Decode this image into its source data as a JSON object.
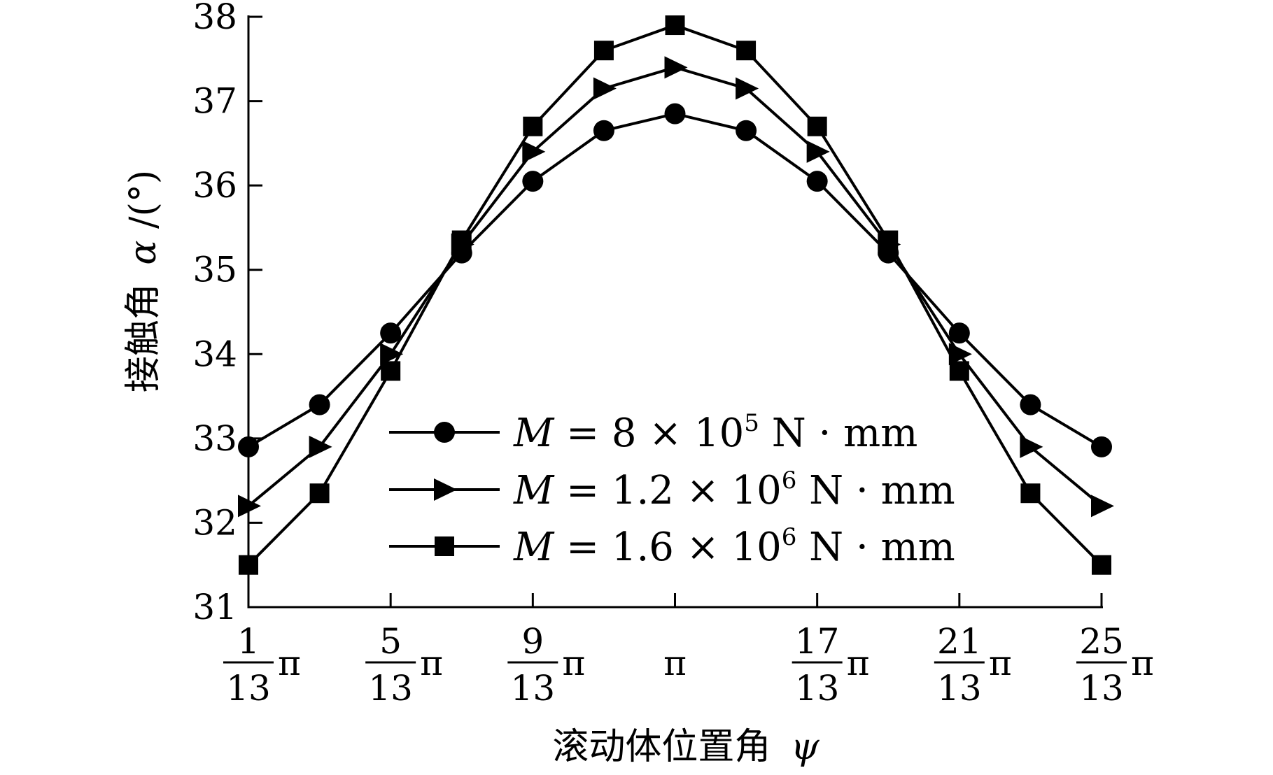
{
  "chart_data": {
    "type": "line",
    "title": "",
    "xlabel": "滚动体位置角",
    "xlabel_symbol": "ψ",
    "ylabel": "接触角",
    "ylabel_symbol": "α",
    "ylabel_unit": "/(°)",
    "ylim": [
      31,
      38
    ],
    "yticks": [
      31,
      32,
      33,
      34,
      35,
      36,
      37,
      38
    ],
    "x": [
      1,
      3,
      5,
      7,
      9,
      11,
      13,
      15,
      17,
      19,
      21,
      23,
      25
    ],
    "x_unit": "π/13",
    "xlim": [
      1,
      25
    ],
    "xticks": [
      {
        "value": 1,
        "num": "1",
        "den": "13",
        "sym": "π"
      },
      {
        "value": 5,
        "num": "5",
        "den": "13",
        "sym": "π"
      },
      {
        "value": 9,
        "num": "9",
        "den": "13",
        "sym": "π"
      },
      {
        "value": 13,
        "num": "",
        "den": "",
        "sym": "π"
      },
      {
        "value": 17,
        "num": "17",
        "den": "13",
        "sym": "π"
      },
      {
        "value": 21,
        "num": "21",
        "den": "13",
        "sym": "π"
      },
      {
        "value": 25,
        "num": "25",
        "den": "13",
        "sym": "π"
      }
    ],
    "grid": false,
    "legend_position": "bottom-center",
    "series": [
      {
        "name": "M = 8 × 10⁵ N · mm",
        "legend": {
          "var": "M",
          "eq": " = 8 × 10",
          "exp": "5",
          "unit": " N · mm"
        },
        "marker": "circle",
        "values": [
          32.9,
          33.4,
          34.25,
          35.2,
          36.05,
          36.65,
          36.85,
          36.65,
          36.05,
          35.2,
          34.25,
          33.4,
          32.9
        ]
      },
      {
        "name": "M = 1.2 × 10⁶ N · mm",
        "legend": {
          "var": "M",
          "eq": " = 1.2 × 10",
          "exp": "6",
          "unit": " N · mm"
        },
        "marker": "triangle-right",
        "values": [
          32.2,
          32.9,
          34.0,
          35.3,
          36.4,
          37.15,
          37.4,
          37.15,
          36.4,
          35.3,
          34.0,
          32.9,
          32.2
        ]
      },
      {
        "name": "M = 1.6 × 10⁶ N · mm",
        "legend": {
          "var": "M",
          "eq": " = 1.6 × 10",
          "exp": "6",
          "unit": " N · mm"
        },
        "marker": "square",
        "values": [
          31.5,
          32.35,
          33.8,
          35.35,
          36.7,
          37.6,
          37.9,
          37.6,
          36.7,
          35.35,
          33.8,
          32.35,
          31.5
        ]
      }
    ],
    "colors": {
      "line": "#000000",
      "marker": "#000000",
      "background": "#ffffff"
    }
  }
}
